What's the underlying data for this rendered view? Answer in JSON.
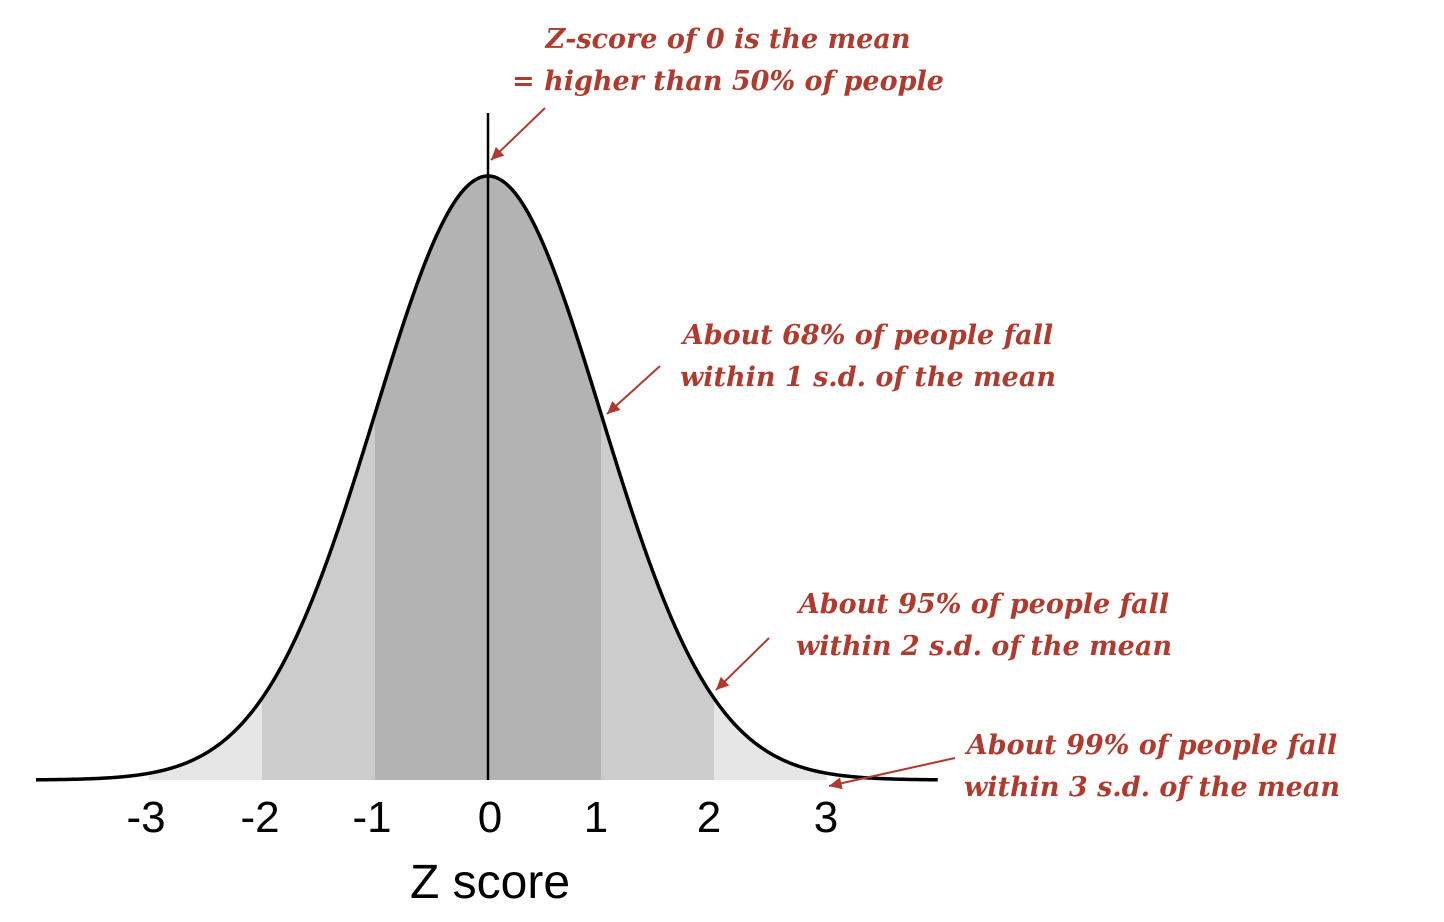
{
  "chart_data": {
    "type": "area",
    "xlabel": "Z score",
    "xticks": [
      "-3",
      "-2",
      "-1",
      "0",
      "1",
      "2",
      "3"
    ],
    "xlim": [
      -4,
      4
    ],
    "distribution": "standard normal",
    "mean": 0,
    "sd": 1,
    "bands": [
      {
        "from": -1,
        "to": 1,
        "color": "#b3b3b3"
      },
      {
        "from": -2,
        "to": 2,
        "color": "#cccccc"
      },
      {
        "from": -3,
        "to": 3,
        "color": "#e6e6e6"
      }
    ],
    "mean_line": 0,
    "annotations": [
      {
        "lines": [
          "Z-score of 0 is the mean",
          "= higher than 50% of people"
        ],
        "target_z": 0
      },
      {
        "lines": [
          "About 68% of people fall",
          "within 1 s.d. of the mean"
        ],
        "target_z": 1
      },
      {
        "lines": [
          "About 95% of people fall",
          "within 2 s.d. of the mean"
        ],
        "target_z": 2
      },
      {
        "lines": [
          "About 99% of people fall",
          "within 3 s.d. of the mean"
        ],
        "target_z": 3
      }
    ],
    "colors": {
      "curve": "#000000",
      "annotation": "#b03a2e"
    }
  }
}
